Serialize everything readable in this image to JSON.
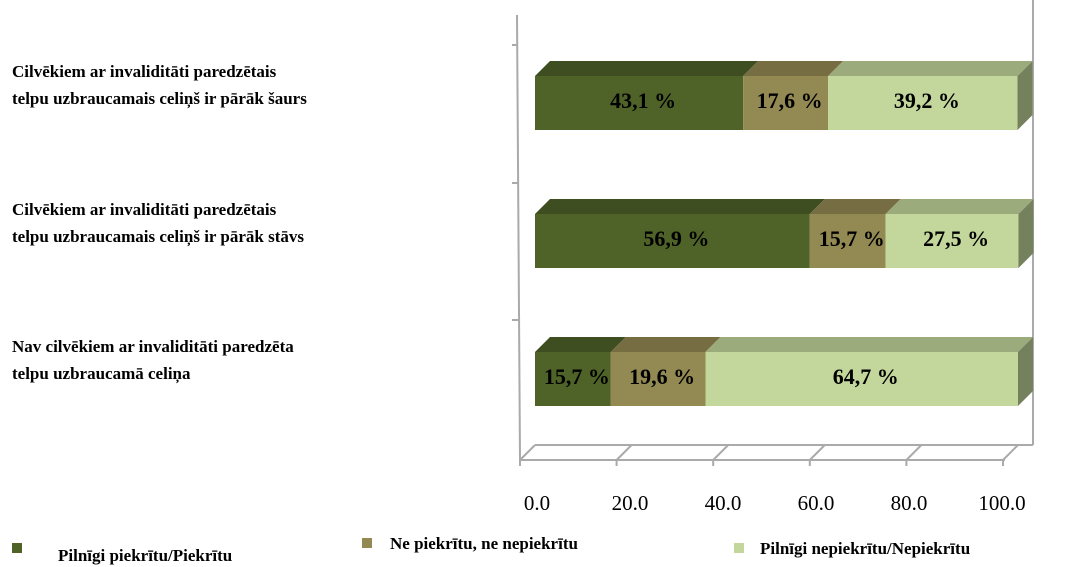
{
  "chart_data": {
    "type": "bar3d_stacked_horizontal",
    "categories": [
      "Cilvēkiem ar invaliditāti paredzētais\ntelpu uzbraucamais celiņš ir pārāk šaurs",
      "Cilvēkiem ar invaliditāti paredzētais\ntelpu uzbraucamais celiņš ir pārāk stāvs",
      "Nav cilvēkiem ar invaliditāti paredzēta\ntelpu uzbraucamā celiņa"
    ],
    "series": [
      {
        "name": "Pilnīgi piekrītu/Piekrītu",
        "color": "#4f6228",
        "values": [
          43.1,
          56.9,
          15.7
        ],
        "value_labels": [
          "43,1 %",
          "56,9 %",
          "15,7 %"
        ]
      },
      {
        "name": "Ne piekrītu, ne nepiekrītu",
        "color": "#938953",
        "values": [
          17.6,
          15.7,
          19.6
        ],
        "value_labels": [
          "17,6 %",
          "15,7 %",
          "19,6 %"
        ]
      },
      {
        "name": "Pilnīgi nepiekrītu/Nepiekrītu",
        "color": "#c3d69b",
        "values": [
          39.2,
          27.5,
          64.7
        ],
        "value_labels": [
          "39,2 %",
          "27,5 %",
          "64,7 %"
        ]
      }
    ],
    "xlim": [
      0,
      100
    ],
    "xticks": [
      {
        "value": 0,
        "label": "0.0"
      },
      {
        "value": 20,
        "label": "20.0"
      },
      {
        "value": 40,
        "label": "40.0"
      },
      {
        "value": 60,
        "label": "60.0"
      },
      {
        "value": 80,
        "label": "80.0"
      },
      {
        "value": 100,
        "label": "100.0"
      }
    ]
  }
}
